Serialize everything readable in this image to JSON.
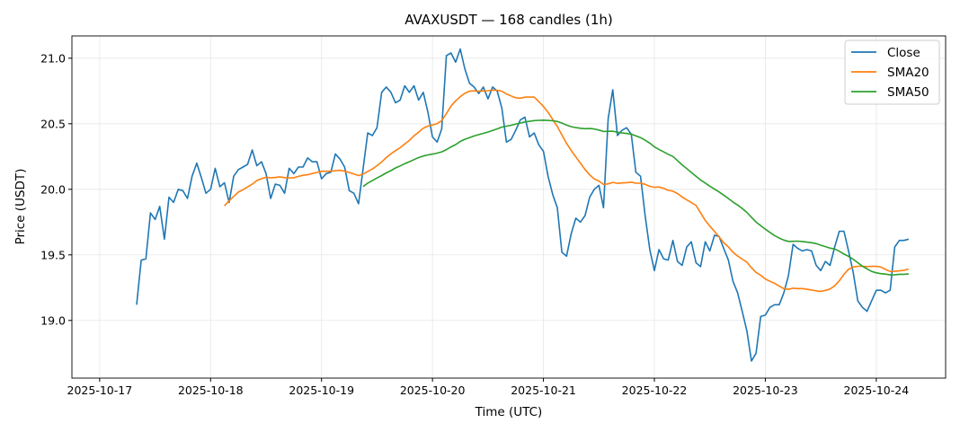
{
  "chart_data": {
    "type": "line",
    "title": "AVAXUSDT — 168 candles (1h)",
    "xlabel": "Time (UTC)",
    "ylabel": "Price (USDT)",
    "start": "2025-10-17T08:00",
    "interval_hours": 1,
    "xlim": [
      "2025-10-16T18:00",
      "2025-10-24T15:00"
    ],
    "ylim": [
      18.56,
      21.17
    ],
    "x_ticks": [
      "2025-10-17",
      "2025-10-18",
      "2025-10-19",
      "2025-10-20",
      "2025-10-21",
      "2025-10-22",
      "2025-10-23",
      "2025-10-24"
    ],
    "y_ticks": [
      "19.0",
      "19.5",
      "20.0",
      "20.5",
      "21.0"
    ],
    "grid": true,
    "legend_position": "top-right",
    "series": [
      {
        "name": "Close",
        "color": "#1f77b4",
        "values": [
          19.12,
          19.46,
          19.47,
          19.82,
          19.77,
          19.87,
          19.62,
          19.94,
          19.9,
          20.0,
          19.99,
          19.93,
          20.1,
          20.2,
          20.09,
          19.97,
          20.0,
          20.16,
          20.02,
          20.05,
          19.9,
          20.1,
          20.15,
          20.17,
          20.19,
          20.3,
          20.18,
          20.21,
          20.12,
          19.93,
          20.04,
          20.03,
          19.97,
          20.16,
          20.12,
          20.17,
          20.17,
          20.24,
          20.21,
          20.21,
          20.08,
          20.12,
          20.13,
          20.27,
          20.23,
          20.17,
          19.99,
          19.97,
          19.89,
          20.16,
          20.43,
          20.41,
          20.47,
          20.74,
          20.78,
          20.74,
          20.66,
          20.68,
          20.79,
          20.74,
          20.79,
          20.68,
          20.74,
          20.59,
          20.4,
          20.36,
          20.46,
          21.02,
          21.04,
          20.97,
          21.07,
          20.92,
          20.81,
          20.78,
          20.73,
          20.78,
          20.69,
          20.78,
          20.75,
          20.62,
          20.36,
          20.38,
          20.45,
          20.53,
          20.55,
          20.4,
          20.43,
          20.34,
          20.29,
          20.1,
          19.96,
          19.86,
          19.52,
          19.49,
          19.66,
          19.78,
          19.75,
          19.8,
          19.94,
          20.0,
          20.03,
          19.86,
          20.54,
          20.76,
          20.41,
          20.45,
          20.47,
          20.42,
          20.13,
          20.1,
          19.8,
          19.54,
          19.38,
          19.54,
          19.47,
          19.46,
          19.61,
          19.45,
          19.42,
          19.56,
          19.6,
          19.44,
          19.41,
          19.6,
          19.53,
          19.65,
          19.64,
          19.55,
          19.46,
          19.3,
          19.21,
          19.07,
          18.92,
          18.69,
          18.75,
          19.03,
          19.04,
          19.1,
          19.12,
          19.12,
          19.21,
          19.34,
          19.58,
          19.55,
          19.53,
          19.54,
          19.53,
          19.42,
          19.38,
          19.45,
          19.42,
          19.56,
          19.68,
          19.68,
          19.53,
          19.37,
          19.15,
          19.1,
          19.07,
          19.15,
          19.23,
          19.23,
          19.21,
          19.23,
          19.56,
          19.61,
          19.61,
          19.62
        ]
      },
      {
        "name": "SMA20",
        "color": "#ff7f0e",
        "window": 20
      },
      {
        "name": "SMA50",
        "color": "#2ca02c",
        "window": 50
      }
    ]
  }
}
